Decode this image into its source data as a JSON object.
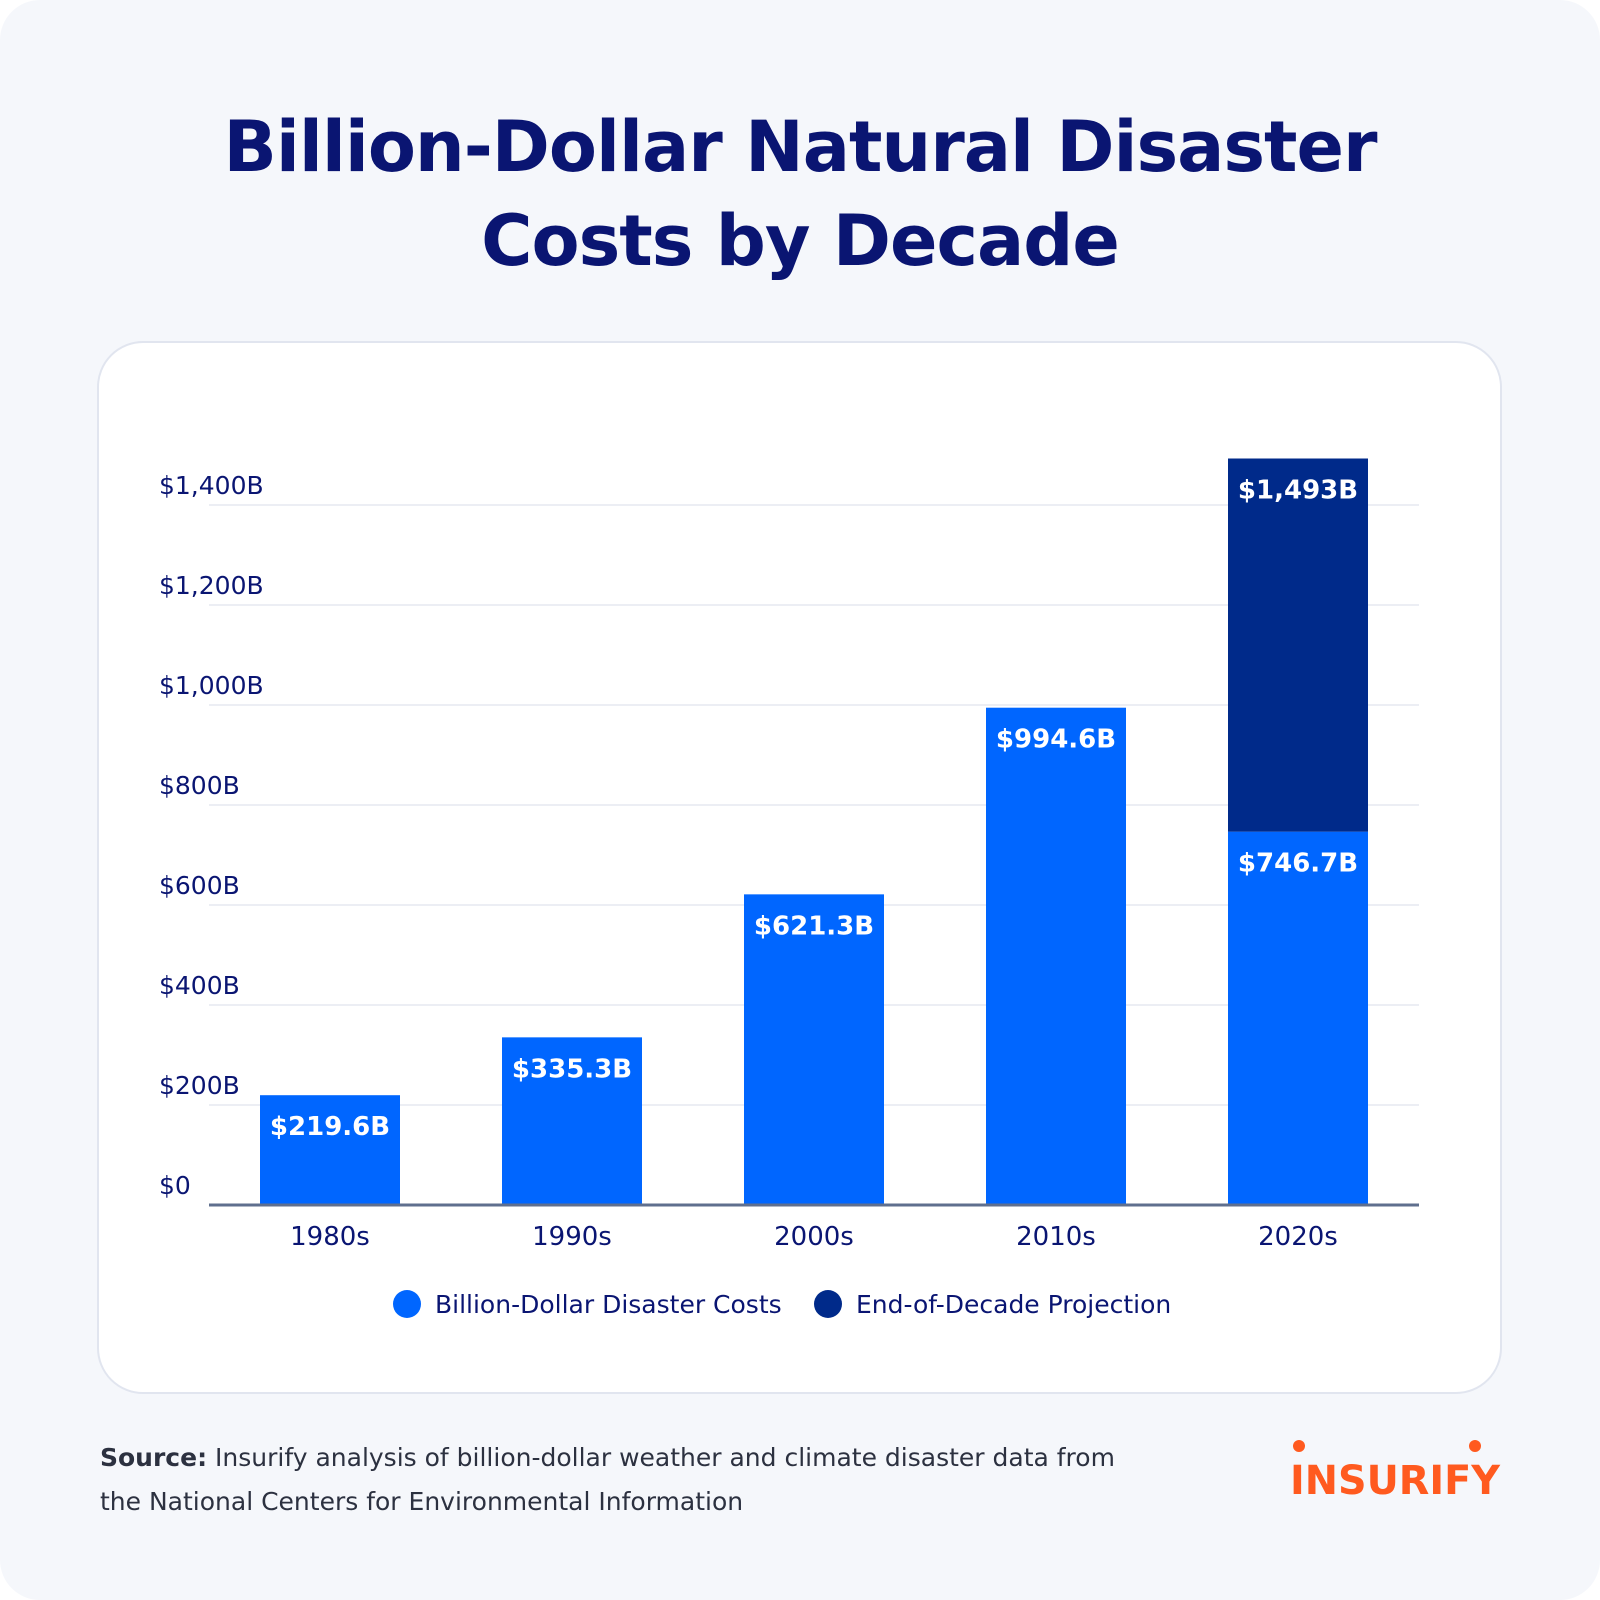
{
  "title": {
    "line1": "Billion-Dollar Natural Disaster",
    "line2": "Costs by Decade"
  },
  "chart_data": {
    "type": "bar",
    "stacked": true,
    "categories": [
      "1980s",
      "1990s",
      "2000s",
      "2010s",
      "2020s"
    ],
    "series": [
      {
        "name": "Billion-Dollar Disaster Costs",
        "color": "#0066ff",
        "values": [
          219.6,
          335.3,
          621.3,
          994.6,
          746.7
        ],
        "labels": [
          "$219.6B",
          "$335.3B",
          "$621.3B",
          "$994.6B",
          "$746.7B"
        ]
      },
      {
        "name": "End-of-Decade Projection",
        "color": "#002a8a",
        "values": [
          0,
          0,
          0,
          0,
          746.3
        ],
        "labels": [
          "",
          "",
          "",
          "",
          "$1,493B"
        ]
      }
    ],
    "y_ticks": [
      0,
      200,
      400,
      600,
      800,
      1000,
      1200,
      1400
    ],
    "y_tick_labels": [
      "$0",
      "$200B",
      "$400B",
      "$600B",
      "$800B",
      "$1,000B",
      "$1,200B",
      "$1,400B"
    ],
    "ylim": [
      0,
      1493
    ],
    "grid": true,
    "legend_position": "bottom-center",
    "axis_color": "#5f6f8e",
    "grid_color": "#e6e9f0",
    "tick_label_color": "#0a1572"
  },
  "source": {
    "label": "Source:",
    "text": "Insurify analysis of billion-dollar weather and climate disaster data from the National Centers for Environmental Information"
  },
  "logo": {
    "text": "INSURIFY",
    "color": "#ff5a1f"
  }
}
